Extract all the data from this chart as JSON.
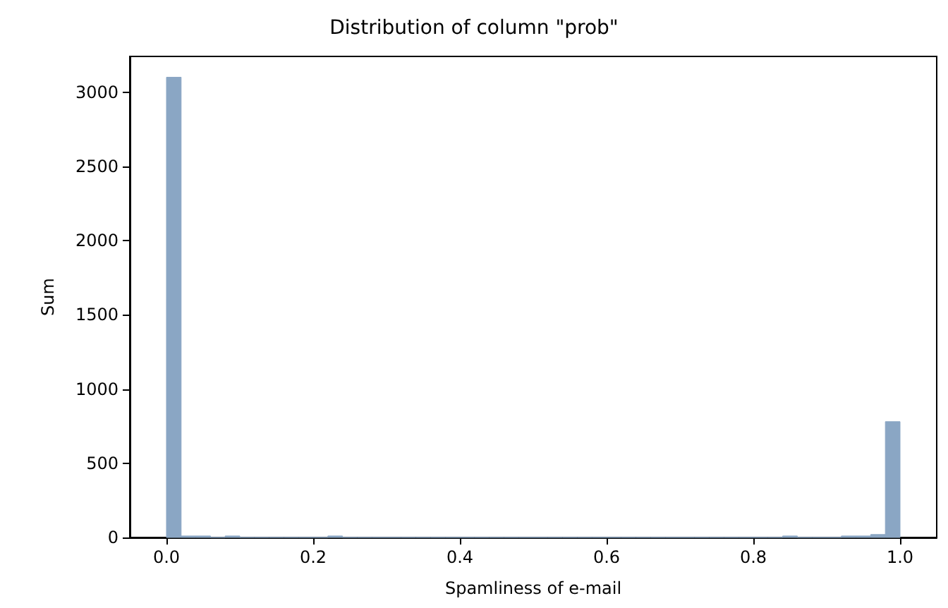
{
  "chart_data": {
    "type": "histogram",
    "title": "Distribution of column \"prob\"",
    "xlabel": "Spamliness of e-mail",
    "ylabel": "Sum",
    "bins": [
      0,
      0.02,
      0.04,
      0.06,
      0.08,
      0.1,
      0.12,
      0.14,
      0.16,
      0.18,
      0.2,
      0.22,
      0.24,
      0.26,
      0.28,
      0.3,
      0.32,
      0.34,
      0.36,
      0.38,
      0.4,
      0.42,
      0.44,
      0.46,
      0.48,
      0.5,
      0.52,
      0.54,
      0.56,
      0.58,
      0.6,
      0.62,
      0.64,
      0.66,
      0.68,
      0.7,
      0.72,
      0.74,
      0.76,
      0.78,
      0.8,
      0.82,
      0.84,
      0.86,
      0.88,
      0.9,
      0.92,
      0.94,
      0.96,
      0.98,
      1.0
    ],
    "values": [
      3100,
      10,
      10,
      0,
      10,
      0,
      0,
      0,
      0,
      0,
      0,
      10,
      0,
      0,
      0,
      0,
      0,
      0,
      0,
      0,
      0,
      0,
      0,
      0,
      0,
      0,
      0,
      0,
      0,
      0,
      0,
      0,
      0,
      0,
      0,
      0,
      0,
      0,
      0,
      0,
      0,
      0,
      10,
      0,
      0,
      0,
      10,
      10,
      20,
      780
    ],
    "color": "#8aa6c4",
    "xlim": [
      -0.05,
      1.05
    ],
    "ylim": [
      0,
      3240
    ],
    "xticks": [
      {
        "value": 0,
        "label": "0.0"
      },
      0.2,
      0.4,
      0.6,
      0.8,
      {
        "value": 1,
        "label": "1.0"
      }
    ],
    "yticks": [
      0,
      500,
      1000,
      1500,
      2000,
      2500,
      3000
    ]
  }
}
